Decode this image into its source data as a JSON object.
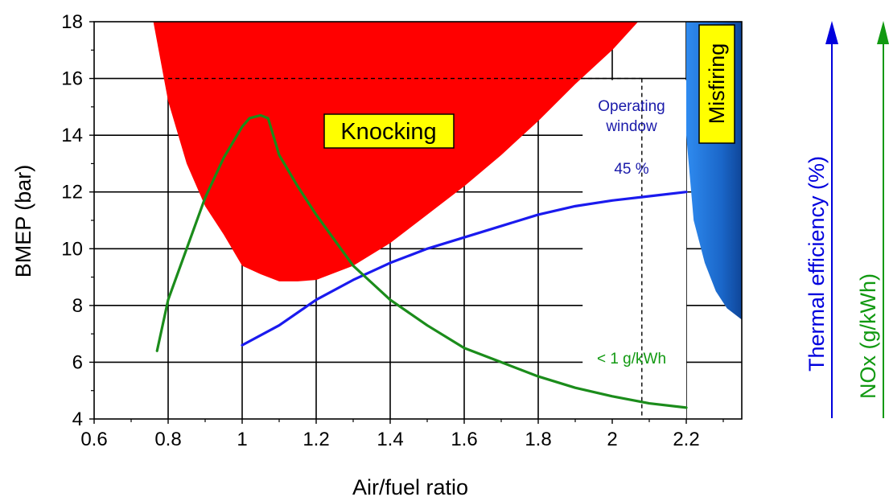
{
  "chart_data": {
    "type": "line",
    "xlabel": "Air/fuel ratio",
    "ylabel": "BMEP (bar)",
    "xlim": [
      0.6,
      2.35
    ],
    "ylim": [
      4,
      18
    ],
    "x_ticks": [
      0.6,
      0.8,
      1.0,
      1.2,
      1.4,
      1.6,
      1.8,
      2.0,
      2.2
    ],
    "x_tick_labels": [
      "0.6",
      "0.8",
      "1",
      "1.2",
      "1.4",
      "1.6",
      "1.8",
      "2",
      "2.2"
    ],
    "y_ticks": [
      4,
      6,
      8,
      10,
      12,
      14,
      16,
      18
    ],
    "y_tick_labels": [
      "4",
      "6",
      "8",
      "10",
      "12",
      "14",
      "16",
      "18"
    ],
    "grid": true,
    "series": [
      {
        "name": "Thermal efficiency (%)",
        "color": "#1a1aee",
        "x": [
          1.0,
          1.1,
          1.2,
          1.3,
          1.4,
          1.5,
          1.6,
          1.7,
          1.8,
          1.9,
          2.0,
          2.1,
          2.2
        ],
        "y": [
          6.6,
          7.3,
          8.2,
          8.9,
          9.5,
          10.0,
          10.4,
          10.8,
          11.2,
          11.5,
          11.7,
          11.85,
          12.0
        ]
      },
      {
        "name": "NOx (g/kWh)",
        "color": "#1b8c1b",
        "x": [
          0.77,
          0.8,
          0.85,
          0.9,
          0.95,
          1.0,
          1.02,
          1.05,
          1.07,
          1.1,
          1.15,
          1.2,
          1.25,
          1.3,
          1.35,
          1.4,
          1.5,
          1.6,
          1.7,
          1.8,
          1.9,
          2.0,
          2.1,
          2.2
        ],
        "y": [
          6.4,
          8.2,
          10.0,
          11.8,
          13.2,
          14.3,
          14.6,
          14.7,
          14.6,
          13.3,
          12.2,
          11.2,
          10.3,
          9.4,
          8.8,
          8.2,
          7.3,
          6.5,
          6.0,
          5.5,
          5.1,
          4.8,
          4.55,
          4.4
        ]
      }
    ],
    "regions": [
      {
        "name": "Knocking",
        "label": "Knocking",
        "color": "#ff0000",
        "boundary_x": [
          0.76,
          0.8,
          0.85,
          0.9,
          0.95,
          1.0,
          1.05,
          1.1,
          1.15,
          1.2,
          1.3,
          1.4,
          1.5,
          1.6,
          1.7,
          1.8,
          1.9,
          2.0,
          2.07
        ],
        "boundary_y": [
          18,
          15.2,
          13.0,
          11.5,
          10.5,
          9.4,
          9.1,
          8.85,
          8.85,
          8.9,
          9.4,
          10.2,
          11.2,
          12.2,
          13.3,
          14.5,
          15.8,
          17.0,
          18
        ]
      },
      {
        "name": "Misfiring",
        "label": "Misfiring",
        "color": "#1e6ed0",
        "boundary_x": [
          2.2,
          2.2,
          2.22,
          2.25,
          2.28,
          2.31,
          2.35
        ],
        "boundary_y": [
          18,
          14.0,
          11.0,
          9.5,
          8.5,
          7.9,
          7.5
        ]
      }
    ],
    "dashed_guides": {
      "bmep_limit": 16,
      "operating_lambda": 2.08
    },
    "annotations": {
      "knocking": "Knocking",
      "misfiring": "Misfiring",
      "operating_window_line1": "Operating",
      "operating_window_line2": "window",
      "efficiency_value": "45 %",
      "nox_value": "< 1 g/kWh"
    },
    "right_axes": [
      {
        "label": "Thermal efficiency (%)",
        "color": "#0000dd"
      },
      {
        "label": "NOx (g/kWh)",
        "color": "#119911"
      }
    ]
  }
}
